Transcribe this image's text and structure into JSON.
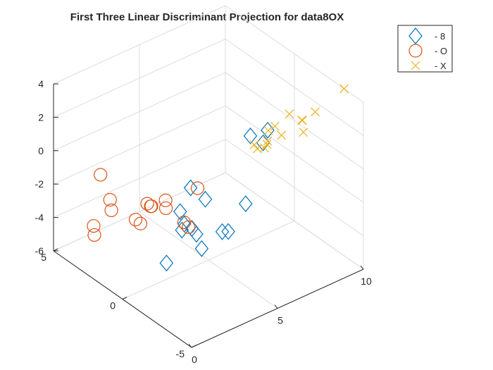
{
  "chart_data": {
    "type": "scatter3d",
    "title": "First Three Linear Discriminant Projection for data8OX",
    "xlabel": "",
    "ylabel": "",
    "zlabel": "",
    "xlim": [
      0,
      10
    ],
    "ylim": [
      -5,
      5
    ],
    "zlim": [
      -6,
      4
    ],
    "xticks": [
      0,
      5,
      10
    ],
    "yticks": [
      -5,
      0,
      5
    ],
    "zticks": [
      -6,
      -4,
      -2,
      0,
      2,
      4
    ],
    "grid": true,
    "legend_position": "top-right",
    "series": [
      {
        "name": "- 8",
        "marker": "diamond",
        "color": "#0072BD",
        "points": [
          [
            3.8,
            -0.2,
            -1.0
          ],
          [
            3.4,
            -1.5,
            -3.7
          ],
          [
            3.2,
            0.8,
            -5.8
          ],
          [
            5.0,
            1.2,
            -4.8
          ],
          [
            4.9,
            1.8,
            -5.2
          ],
          [
            5.4,
            -0.5,
            -4.2
          ],
          [
            4.7,
            0.5,
            -4.6
          ],
          [
            5.2,
            2.0,
            -5.1
          ],
          [
            5.6,
            2.8,
            -5.0
          ],
          [
            6.2,
            -1.2,
            -2.5
          ],
          [
            6.1,
            1.6,
            -3.8
          ],
          [
            7.4,
            -1.3,
            1.4
          ],
          [
            7.6,
            0.2,
            0.1
          ],
          [
            7.7,
            -0.6,
            0.1
          ],
          [
            8.4,
            2.8,
            -7.5
          ]
        ]
      },
      {
        "name": "- O",
        "marker": "circle",
        "color": "#D95319",
        "points": [
          [
            -0.4,
            1.1,
            1.0
          ],
          [
            -1.8,
            -0.2,
            -1.2
          ],
          [
            -1.2,
            0.6,
            -1.4
          ],
          [
            0.4,
            -0.8,
            -1.2
          ],
          [
            0.6,
            -0.2,
            -1.4
          ],
          [
            1.4,
            -1.4,
            -0.4
          ],
          [
            1.7,
            -1.0,
            -0.3
          ],
          [
            1.8,
            0.2,
            -1.4
          ],
          [
            2.0,
            0.4,
            -1.6
          ],
          [
            2.6,
            -2.2,
            0.7
          ],
          [
            1.2,
            2.4,
            -2.0
          ],
          [
            2.4,
            1.2,
            -2.1
          ],
          [
            3.1,
            -0.6,
            -2.5
          ],
          [
            3.6,
            -0.3,
            -3.2
          ],
          [
            2.4,
            3.8,
            -4.0
          ]
        ]
      },
      {
        "name": "- X",
        "marker": "x",
        "color": "#EDB120",
        "points": [
          [
            5.6,
            -2.8,
            2.0
          ],
          [
            6.7,
            -1.2,
            0.8
          ],
          [
            7.3,
            -3.0,
            3.4
          ],
          [
            7.1,
            -2.2,
            2.3
          ],
          [
            8.0,
            -0.6,
            0.7
          ],
          [
            8.4,
            -3.5,
            3.3
          ],
          [
            8.7,
            -2.2,
            1.9
          ],
          [
            7.6,
            -1.0,
            0.3
          ],
          [
            8.2,
            -0.3,
            -0.2
          ],
          [
            9.4,
            -1.4,
            0.4
          ],
          [
            8.1,
            -2.9,
            2.6
          ],
          [
            7.8,
            -1.8,
            1.2
          ],
          [
            8.5,
            0.3,
            -1.1
          ],
          [
            10.0,
            -3.6,
            4.0
          ]
        ]
      }
    ]
  }
}
